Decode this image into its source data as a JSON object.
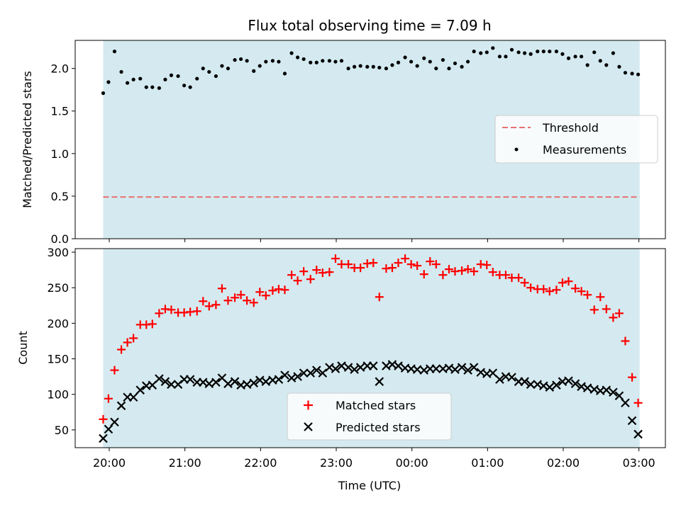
{
  "chart_data": [
    {
      "type": "scatter",
      "title": "Flux total observing time = 7.09 h",
      "xlabel": "",
      "ylabel": "Matched/Predicted stars",
      "ylim": [
        0.0,
        2.33
      ],
      "yticks": [
        0.0,
        0.5,
        1.0,
        1.5,
        2.0
      ],
      "yticklabels": [
        "0.0",
        "0.5",
        "1.0",
        "1.5",
        "2.0"
      ],
      "xlim": [
        19.55,
        27.35
      ],
      "xticks": [
        20,
        21,
        22,
        23,
        24,
        25,
        26,
        27
      ],
      "shaded_range": [
        19.92,
        27.01
      ],
      "shade_color": "#d4eaf0",
      "legend_position": "center-right",
      "series": [
        {
          "name": "Threshold",
          "style": "dashed-line",
          "color": "#e87070",
          "x": [
            19.92,
            27.01
          ],
          "values": [
            0.49,
            0.49
          ]
        },
        {
          "name": "Measurements",
          "style": "dot",
          "color": "#000000",
          "x": [
            19.92,
            19.99,
            20.07,
            20.16,
            20.24,
            20.32,
            20.41,
            20.49,
            20.57,
            20.66,
            20.74,
            20.82,
            20.91,
            20.99,
            21.07,
            21.16,
            21.24,
            21.32,
            21.41,
            21.49,
            21.57,
            21.66,
            21.74,
            21.82,
            21.91,
            21.99,
            22.07,
            22.16,
            22.24,
            22.32,
            22.41,
            22.49,
            22.57,
            22.66,
            22.74,
            22.82,
            22.91,
            22.99,
            23.07,
            23.16,
            23.24,
            23.32,
            23.41,
            23.49,
            23.57,
            23.66,
            23.74,
            23.82,
            23.91,
            23.99,
            24.07,
            24.16,
            24.24,
            24.32,
            24.41,
            24.49,
            24.57,
            24.66,
            24.74,
            24.82,
            24.91,
            24.99,
            25.07,
            25.16,
            25.24,
            25.32,
            25.41,
            25.49,
            25.57,
            25.66,
            25.74,
            25.82,
            25.91,
            25.99,
            26.07,
            26.16,
            26.24,
            26.32,
            26.41,
            26.49,
            26.57,
            26.66,
            26.74,
            26.82,
            26.91,
            26.99
          ],
          "values": [
            1.71,
            1.84,
            2.2,
            1.96,
            1.83,
            1.87,
            1.88,
            1.78,
            1.78,
            1.77,
            1.87,
            1.92,
            1.91,
            1.8,
            1.78,
            1.88,
            2.0,
            1.96,
            1.91,
            2.03,
            2.0,
            2.1,
            2.11,
            2.09,
            1.97,
            2.03,
            2.08,
            2.09,
            2.08,
            1.94,
            2.18,
            2.13,
            2.11,
            2.07,
            2.07,
            2.09,
            2.09,
            2.08,
            2.09,
            2.0,
            2.02,
            2.03,
            2.02,
            2.02,
            2.01,
            2.0,
            2.04,
            2.07,
            2.13,
            2.08,
            2.03,
            2.12,
            2.08,
            2.0,
            2.1,
            2.0,
            2.06,
            2.02,
            2.08,
            2.2,
            2.18,
            2.19,
            2.24,
            2.14,
            2.14,
            2.22,
            2.19,
            2.18,
            2.17,
            2.2,
            2.2,
            2.2,
            2.2,
            2.17,
            2.12,
            2.14,
            2.14,
            2.04,
            2.19,
            2.09,
            2.04,
            2.18,
            2.02,
            1.95,
            1.94,
            1.93
          ]
        }
      ]
    },
    {
      "type": "scatter",
      "title": "",
      "xlabel": "Time (UTC)",
      "ylabel": "Count",
      "ylim": [
        25,
        305
      ],
      "yticks": [
        50,
        100,
        150,
        200,
        250,
        300
      ],
      "yticklabels": [
        "50",
        "100",
        "150",
        "200",
        "250",
        "300"
      ],
      "xlim": [
        19.55,
        27.35
      ],
      "xticks": [
        20,
        21,
        22,
        23,
        24,
        25,
        26,
        27
      ],
      "xticklabels": [
        "20:00",
        "21:00",
        "22:00",
        "23:00",
        "00:00",
        "01:00",
        "02:00",
        "03:00"
      ],
      "shaded_range": [
        19.92,
        27.01
      ],
      "shade_color": "#d4eaf0",
      "legend_position": "lower-center",
      "series": [
        {
          "name": "Matched stars",
          "marker": "plus",
          "color": "#ff0000",
          "x": [
            19.92,
            19.99,
            20.07,
            20.16,
            20.24,
            20.32,
            20.41,
            20.49,
            20.57,
            20.66,
            20.74,
            20.82,
            20.91,
            20.99,
            21.07,
            21.16,
            21.24,
            21.32,
            21.41,
            21.49,
            21.57,
            21.66,
            21.74,
            21.82,
            21.91,
            21.99,
            22.07,
            22.16,
            22.24,
            22.32,
            22.41,
            22.49,
            22.57,
            22.66,
            22.74,
            22.82,
            22.91,
            22.99,
            23.07,
            23.16,
            23.24,
            23.32,
            23.41,
            23.49,
            23.57,
            23.66,
            23.74,
            23.82,
            23.91,
            23.99,
            24.07,
            24.16,
            24.24,
            24.32,
            24.41,
            24.49,
            24.57,
            24.66,
            24.74,
            24.82,
            24.91,
            24.99,
            25.07,
            25.16,
            25.24,
            25.32,
            25.41,
            25.49,
            25.57,
            25.66,
            25.74,
            25.82,
            25.91,
            25.99,
            26.07,
            26.16,
            26.24,
            26.32,
            26.41,
            26.49,
            26.57,
            26.66,
            26.74,
            26.82,
            26.91,
            26.99
          ],
          "values": [
            65,
            94,
            134,
            163,
            173,
            179,
            198,
            198,
            199,
            214,
            220,
            219,
            215,
            215,
            216,
            217,
            231,
            224,
            226,
            249,
            232,
            236,
            240,
            232,
            229,
            244,
            239,
            246,
            248,
            247,
            268,
            260,
            273,
            262,
            275,
            271,
            272,
            291,
            283,
            283,
            278,
            278,
            284,
            285,
            237,
            277,
            278,
            285,
            291,
            283,
            281,
            269,
            287,
            283,
            268,
            276,
            273,
            274,
            276,
            273,
            283,
            282,
            272,
            268,
            268,
            264,
            264,
            257,
            250,
            248,
            248,
            245,
            247,
            257,
            259,
            249,
            245,
            240,
            219,
            237,
            220,
            208,
            214,
            175,
            124,
            88
          ]
        },
        {
          "name": "Predicted stars",
          "marker": "x",
          "color": "#000000",
          "x": [
            19.92,
            19.99,
            20.07,
            20.16,
            20.24,
            20.32,
            20.41,
            20.49,
            20.57,
            20.66,
            20.74,
            20.82,
            20.91,
            20.99,
            21.07,
            21.16,
            21.24,
            21.32,
            21.41,
            21.49,
            21.57,
            21.66,
            21.74,
            21.82,
            21.91,
            21.99,
            22.07,
            22.16,
            22.24,
            22.32,
            22.41,
            22.49,
            22.57,
            22.66,
            22.74,
            22.82,
            22.91,
            22.99,
            23.07,
            23.16,
            23.24,
            23.32,
            23.41,
            23.49,
            23.57,
            23.66,
            23.74,
            23.82,
            23.91,
            23.99,
            24.07,
            24.16,
            24.24,
            24.32,
            24.41,
            24.49,
            24.57,
            24.66,
            24.74,
            24.82,
            24.91,
            24.99,
            25.07,
            25.16,
            25.24,
            25.32,
            25.41,
            25.49,
            25.57,
            25.66,
            25.74,
            25.82,
            25.91,
            25.99,
            26.07,
            26.16,
            26.24,
            26.32,
            26.41,
            26.49,
            26.57,
            26.66,
            26.74,
            26.82,
            26.91,
            26.99
          ],
          "values": [
            38,
            51,
            61,
            84,
            96,
            96,
            106,
            112,
            113,
            122,
            118,
            114,
            114,
            121,
            121,
            117,
            117,
            115,
            117,
            123,
            115,
            118,
            113,
            114,
            116,
            120,
            118,
            120,
            121,
            127,
            123,
            125,
            130,
            130,
            134,
            130,
            138,
            136,
            140,
            138,
            135,
            138,
            140,
            140,
            118,
            140,
            142,
            140,
            137,
            136,
            135,
            134,
            136,
            136,
            136,
            137,
            135,
            138,
            134,
            138,
            131,
            129,
            130,
            121,
            125,
            124,
            118,
            118,
            114,
            114,
            112,
            110,
            113,
            118,
            119,
            115,
            111,
            109,
            107,
            105,
            106,
            103,
            98,
            88,
            63,
            44
          ]
        }
      ]
    }
  ]
}
